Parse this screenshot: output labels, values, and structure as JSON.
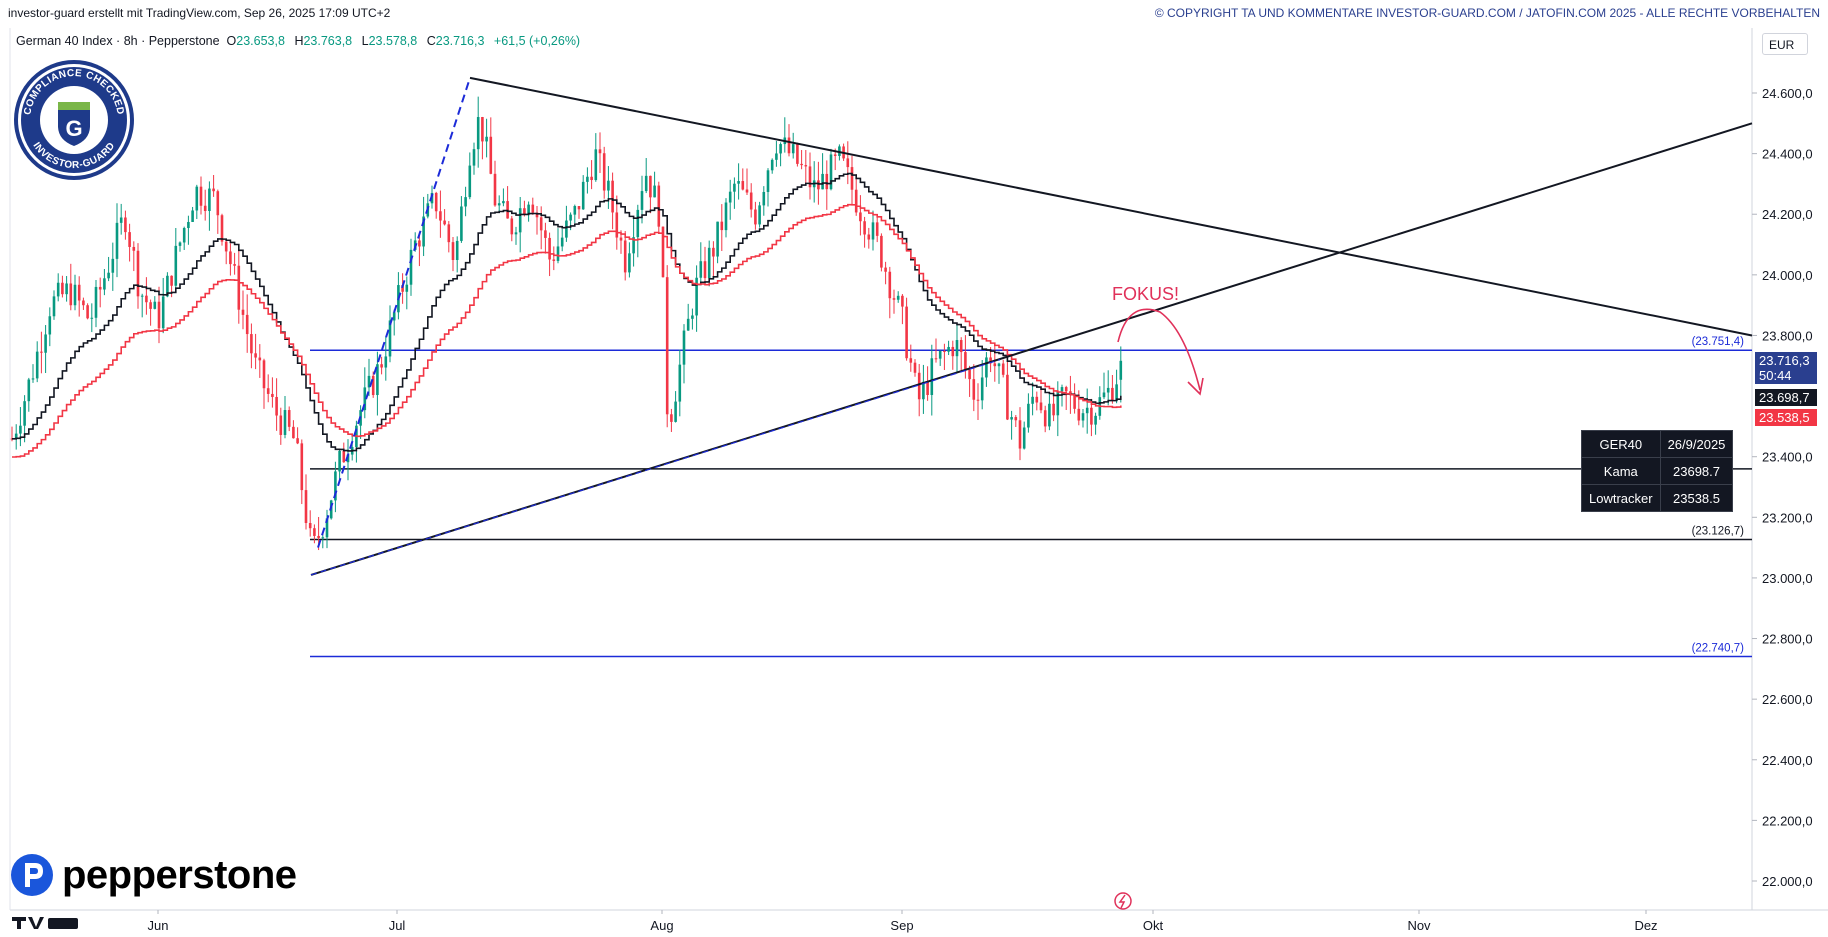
{
  "header": {
    "left_text": "investor-guard erstellt mit TradingView.com, Sep 26, 2025 17:09 UTC+2",
    "right_text": "© COPYRIGHT TA UND KOMMENTARE INVESTOR-GUARD.COM / JATOFIN.COM 2025 - ALLE RECHTE VORBEHALTEN"
  },
  "symbol": {
    "name": "German 40 Index · 8h · Pepperstone",
    "open_label": "O",
    "open": "23.653,8",
    "high_label": "H",
    "high": "23.763,8",
    "low_label": "L",
    "low": "23.578,8",
    "close_label": "C",
    "close": "23.716,3",
    "change": "+61,5 (+0,26%)"
  },
  "currency": "EUR",
  "badges": {
    "last_price": "23.716,3",
    "countdown": "50:44",
    "kama": "23.698,7",
    "lowtracker": "23.538,5"
  },
  "seal": {
    "top_text": "COMPLIANCE CHECKED",
    "bottom_text": "INVESTOR-GUARD",
    "letter": "G"
  },
  "annotation": "FOKUS!",
  "info_table": {
    "rows": [
      [
        "GER40",
        "26/9/2025"
      ],
      [
        "Kama",
        "23698.7"
      ],
      [
        "Lowtracker",
        "23538.5"
      ]
    ]
  },
  "brand": {
    "name": "pepperstone"
  },
  "colors": {
    "up": "#089981",
    "down": "#f23645",
    "kama": "#131722",
    "lowtracker": "#f23645",
    "level": "#1c2bd8",
    "accent_label": "#2a3f8f"
  },
  "chart_data": {
    "type": "candlestick",
    "title": "German 40 Index · 8h · Pepperstone",
    "y_axis": {
      "ticks": [
        "24.600,0",
        "24.400,0",
        "24.200,0",
        "24.000,0",
        "23.800,0",
        "23.400,0",
        "23.200,0",
        "23.000,0",
        "22.800,0",
        "22.600,0",
        "22.400,0",
        "22.200,0",
        "22.000,0"
      ],
      "tick_values": [
        24600,
        24400,
        24200,
        24000,
        23800,
        23400,
        23200,
        23000,
        22800,
        22600,
        22400,
        22200,
        22000
      ]
    },
    "x_axis": {
      "ticks": [
        "Jun",
        "Jul",
        "Aug",
        "Sep",
        "Okt",
        "Nov",
        "Dez"
      ]
    },
    "horizontal_levels": [
      {
        "value": 23751.4,
        "label": "(23.751,4)",
        "color": "blue"
      },
      {
        "value": 23360,
        "label": "",
        "color": "black"
      },
      {
        "value": 23126.7,
        "label": "(23.126,7)",
        "color": "black"
      },
      {
        "value": 22740.7,
        "label": "(22.740,7)",
        "color": "blue"
      }
    ],
    "trendlines": [
      {
        "name": "descending resistance",
        "from": {
          "date": "2025-07-10",
          "price": 24650
        },
        "to": {
          "date": "2025-12-31",
          "price": 23800
        }
      },
      {
        "name": "ascending support",
        "from": {
          "date": "2025-06-22",
          "price": 23010
        },
        "to": {
          "date": "2025-12-31",
          "price": 24500
        }
      }
    ],
    "last": {
      "close": 23716.3,
      "kama": 23698.7,
      "lowtracker": 23538.5
    }
  }
}
